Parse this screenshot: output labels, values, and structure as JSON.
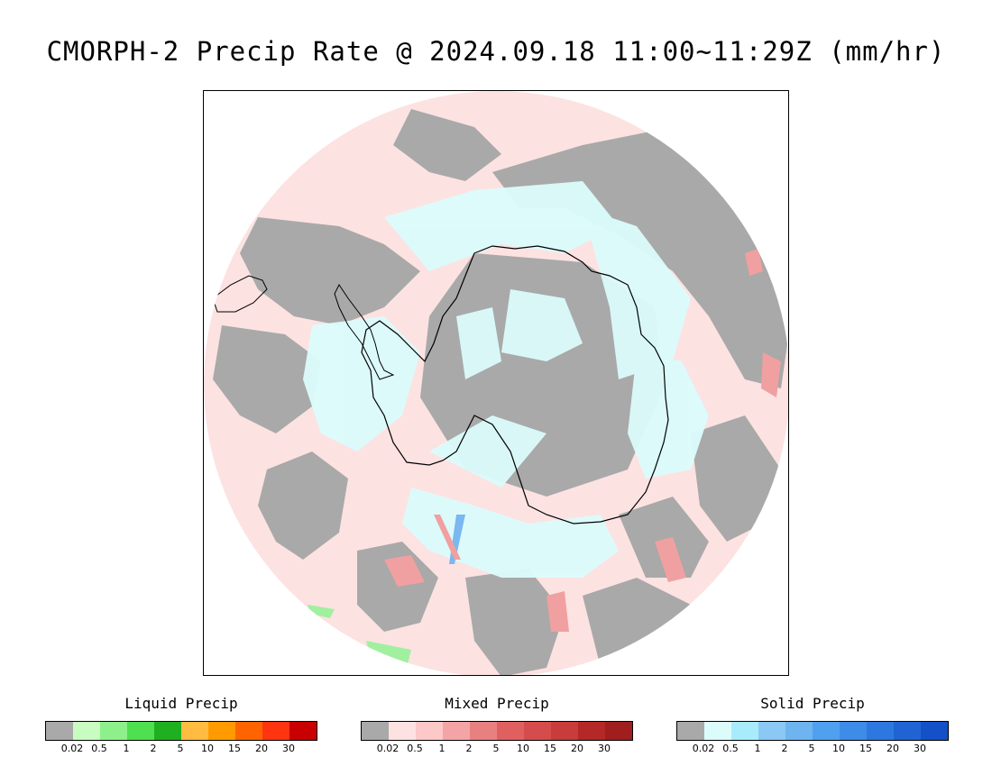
{
  "title": "CMORPH-2 Precip Rate @ 2024.09.18 11:00~11:29Z (mm/hr)",
  "map": {
    "projection": "south-polar-stereographic",
    "region": "Antarctica and Southern Ocean",
    "colors": {
      "no_precip": "#a9a9a9",
      "mixed_trace": "#fde2e2",
      "solid_trace": "#dcfcfc",
      "coastline": "#000000",
      "solid_moderate": "#79b8f0",
      "mixed_moderate": "#f0a0a0",
      "liquid_light": "#a0f0a0"
    }
  },
  "legends": [
    {
      "title": "Liquid Precip",
      "labels": [
        "0.02",
        "0.5",
        "1",
        "2",
        "5",
        "10",
        "15",
        "20",
        "30"
      ],
      "colors": [
        "#a9a9a9",
        "#c8fcc0",
        "#8ef08a",
        "#4ee04e",
        "#1fb01f",
        "#ffbc40",
        "#ff9a00",
        "#ff6400",
        "#ff3410",
        "#c80000"
      ]
    },
    {
      "title": "Mixed Precip",
      "labels": [
        "0.02",
        "0.5",
        "1",
        "2",
        "5",
        "10",
        "15",
        "20",
        "30"
      ],
      "colors": [
        "#a9a9a9",
        "#fde2e2",
        "#fcc8c8",
        "#f4a4a4",
        "#e88080",
        "#e06060",
        "#d44c4c",
        "#c83c3c",
        "#b42828",
        "#a01e1e"
      ]
    },
    {
      "title": "Solid Precip",
      "labels": [
        "0.02",
        "0.5",
        "1",
        "2",
        "5",
        "10",
        "15",
        "20",
        "30"
      ],
      "colors": [
        "#a9a9a9",
        "#dcfcfc",
        "#a8ecfc",
        "#8cc8f4",
        "#6eb4f0",
        "#50a0f0",
        "#3c8ce8",
        "#2c78e0",
        "#2064d4",
        "#1450c8"
      ]
    }
  ]
}
